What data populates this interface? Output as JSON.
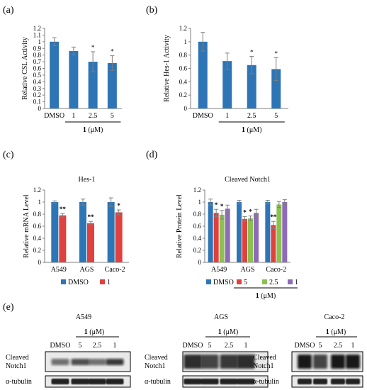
{
  "panel_letters": [
    "(a)",
    "(b)",
    "(c)",
    "(d)",
    "(e)"
  ],
  "colors": {
    "blue": "#2e75b6",
    "red": "#e0413e",
    "green": "#8cc152",
    "purple": "#8e6bb8",
    "axis": "#7f7f7f"
  },
  "chart_data": [
    {
      "panel": "(a)",
      "type": "bar",
      "ylabel": "Relative CSL Activity",
      "ylim": [
        0,
        1.2
      ],
      "yticks": [
        "0",
        "0.1",
        "0.2",
        "0.3",
        "0.4",
        "0.5",
        "0.6",
        "0.7",
        "0.8",
        "0.9",
        "1",
        "1.1",
        "1.2"
      ],
      "categories": [
        "DMSO",
        "1",
        "2.5",
        "5"
      ],
      "values": [
        1.0,
        0.86,
        0.7,
        0.68
      ],
      "errors": [
        0.06,
        0.06,
        0.15,
        0.11
      ],
      "significance": [
        "",
        "",
        "*",
        "*"
      ],
      "group_label": "1",
      "group_unit": " (μM)"
    },
    {
      "panel": "(b)",
      "type": "bar",
      "ylabel": "Relative Hes-1 Activity",
      "ylim": [
        0,
        1.2
      ],
      "yticks": [
        "0",
        "0.2",
        "0.4",
        "0.6",
        "0.8",
        "1",
        "1.2"
      ],
      "categories": [
        "DMSO",
        "1",
        "2.5",
        "5"
      ],
      "values": [
        1.0,
        0.71,
        0.65,
        0.59
      ],
      "errors": [
        0.14,
        0.12,
        0.13,
        0.17
      ],
      "significance": [
        "",
        "",
        "*",
        "*"
      ],
      "group_label": "1",
      "group_unit": " (μM)"
    },
    {
      "panel": "(c)",
      "type": "bar",
      "title": "Hes-1",
      "ylabel": "Relative mRNA Level",
      "ylim": [
        0,
        1.2
      ],
      "yticks": [
        "0",
        "0.2",
        "0.4",
        "0.6",
        "0.8",
        "1",
        "1.2"
      ],
      "categories": [
        "A549",
        "AGS",
        "Caco-2"
      ],
      "series": [
        {
          "name": "DMSO",
          "values": [
            1.0,
            1.0,
            1.0
          ],
          "errors": [
            0.02,
            0.05,
            0.07
          ],
          "significance": [
            "",
            "",
            ""
          ]
        },
        {
          "name": "1",
          "values": [
            0.78,
            0.65,
            0.83
          ],
          "errors": [
            0.03,
            0.03,
            0.04
          ],
          "significance": [
            "**",
            "**",
            "*"
          ]
        }
      ],
      "legend": "bottom"
    },
    {
      "panel": "(d)",
      "type": "bar",
      "title": "Cleaved Notch1",
      "ylabel": "Relative Protein Level",
      "ylim": [
        0,
        1.2
      ],
      "yticks": [
        "0",
        "0.2",
        "0.4",
        "0.6",
        "0.8",
        "1",
        "1.2"
      ],
      "categories": [
        "A549",
        "AGS",
        "Caco-2"
      ],
      "series": [
        {
          "name": "DMSO",
          "values": [
            1.0,
            1.0,
            1.0
          ],
          "errors": [
            0.05,
            0.03,
            0.03
          ],
          "significance": [
            "",
            "",
            ""
          ]
        },
        {
          "name": "5",
          "values": [
            0.82,
            0.72,
            0.62
          ],
          "errors": [
            0.06,
            0.04,
            0.06
          ],
          "significance": [
            "*",
            "*",
            "**"
          ]
        },
        {
          "name": "2.5",
          "values": [
            0.79,
            0.73,
            0.96
          ],
          "errors": [
            0.07,
            0.04,
            0.05
          ],
          "significance": [
            "*",
            "*",
            ""
          ]
        },
        {
          "name": "1",
          "values": [
            0.89,
            0.82,
            1.0
          ],
          "errors": [
            0.06,
            0.06,
            0.04
          ],
          "significance": [
            "",
            "",
            ""
          ]
        }
      ],
      "legend": "bottom",
      "group_label": "1",
      "group_unit": " (μM)"
    }
  ],
  "blots": [
    {
      "cell_line": "A549",
      "compound": "1",
      "unit": " (μM)",
      "lanes": [
        "DMSO",
        "5",
        "2.5",
        "1"
      ],
      "rows": [
        "Cleaved Notch1",
        "α-tubulin"
      ]
    },
    {
      "cell_line": "AGS",
      "compound": "1",
      "unit": " (μM)",
      "lanes": [
        "DMSO",
        "5",
        "2.5",
        "1"
      ],
      "rows": [
        "Cleaved Notch1",
        "α-tubulin"
      ]
    },
    {
      "cell_line": "Caco-2",
      "compound": "1",
      "unit": " (μM)",
      "lanes": [
        "DMSO",
        "5",
        "2.5",
        "1"
      ],
      "rows": [
        "Cleaved Notch1",
        "α-tubulin"
      ]
    }
  ]
}
